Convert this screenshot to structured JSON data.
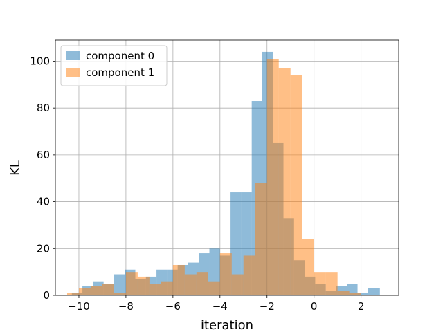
{
  "chart_data": {
    "type": "histogram",
    "xlabel": "iteration",
    "ylabel": "KL",
    "xlim": [
      -11.0,
      3.6
    ],
    "ylim": [
      0,
      109
    ],
    "xticks": [
      -10,
      -8,
      -6,
      -4,
      -2,
      0,
      2
    ],
    "yticks": [
      0,
      20,
      40,
      60,
      80,
      100
    ],
    "grid": true,
    "legend_position": "top-left",
    "series": [
      {
        "name": "component 0",
        "color": "#1f77b4",
        "opacity": 0.5,
        "bins": [
          [
            -10.3,
            -9.85,
            1
          ],
          [
            -9.85,
            -9.4,
            4
          ],
          [
            -9.4,
            -8.95,
            6
          ],
          [
            -8.95,
            -8.5,
            5
          ],
          [
            -8.5,
            -8.05,
            9
          ],
          [
            -8.05,
            -7.6,
            11
          ],
          [
            -7.6,
            -7.15,
            7
          ],
          [
            -7.15,
            -6.7,
            8
          ],
          [
            -6.7,
            -6.25,
            11
          ],
          [
            -6.25,
            -5.8,
            11
          ],
          [
            -5.8,
            -5.35,
            13
          ],
          [
            -5.35,
            -4.9,
            14
          ],
          [
            -4.9,
            -4.45,
            18
          ],
          [
            -4.45,
            -4.0,
            20
          ],
          [
            -4.0,
            -3.55,
            17
          ],
          [
            -3.55,
            -3.1,
            44
          ],
          [
            -3.1,
            -2.65,
            44
          ],
          [
            -2.65,
            -2.2,
            83
          ],
          [
            -2.2,
            -1.75,
            104
          ],
          [
            -1.75,
            -1.3,
            65
          ],
          [
            -1.3,
            -0.85,
            33
          ],
          [
            -0.85,
            -0.4,
            15
          ],
          [
            -0.4,
            0.05,
            8
          ],
          [
            0.05,
            0.5,
            5
          ],
          [
            0.5,
            0.95,
            2
          ],
          [
            0.95,
            1.4,
            4
          ],
          [
            1.4,
            1.85,
            5
          ],
          [
            1.85,
            2.3,
            1
          ],
          [
            2.3,
            2.8,
            3
          ]
        ]
      },
      {
        "name": "component 1",
        "color": "#ff7f0e",
        "opacity": 0.5,
        "bins": [
          [
            -10.5,
            -10.0,
            1
          ],
          [
            -10.0,
            -9.5,
            3
          ],
          [
            -9.5,
            -9.0,
            4
          ],
          [
            -9.0,
            -8.5,
            5
          ],
          [
            -8.5,
            -8.0,
            1
          ],
          [
            -8.0,
            -7.5,
            10
          ],
          [
            -7.5,
            -7.0,
            8
          ],
          [
            -7.0,
            -6.5,
            5
          ],
          [
            -6.5,
            -6.0,
            6
          ],
          [
            -6.0,
            -5.5,
            13
          ],
          [
            -5.5,
            -5.0,
            9
          ],
          [
            -5.0,
            -4.5,
            10
          ],
          [
            -4.5,
            -4.0,
            6
          ],
          [
            -4.0,
            -3.5,
            18
          ],
          [
            -3.5,
            -3.0,
            9
          ],
          [
            -3.0,
            -2.5,
            17
          ],
          [
            -2.5,
            -2.0,
            48
          ],
          [
            -2.0,
            -1.5,
            101
          ],
          [
            -1.5,
            -1.0,
            97
          ],
          [
            -1.0,
            -0.5,
            94
          ],
          [
            -0.5,
            0.0,
            24
          ],
          [
            0.0,
            0.5,
            10
          ],
          [
            0.5,
            1.0,
            10
          ],
          [
            1.0,
            1.5,
            2
          ],
          [
            1.5,
            2.0,
            1
          ]
        ]
      }
    ]
  }
}
